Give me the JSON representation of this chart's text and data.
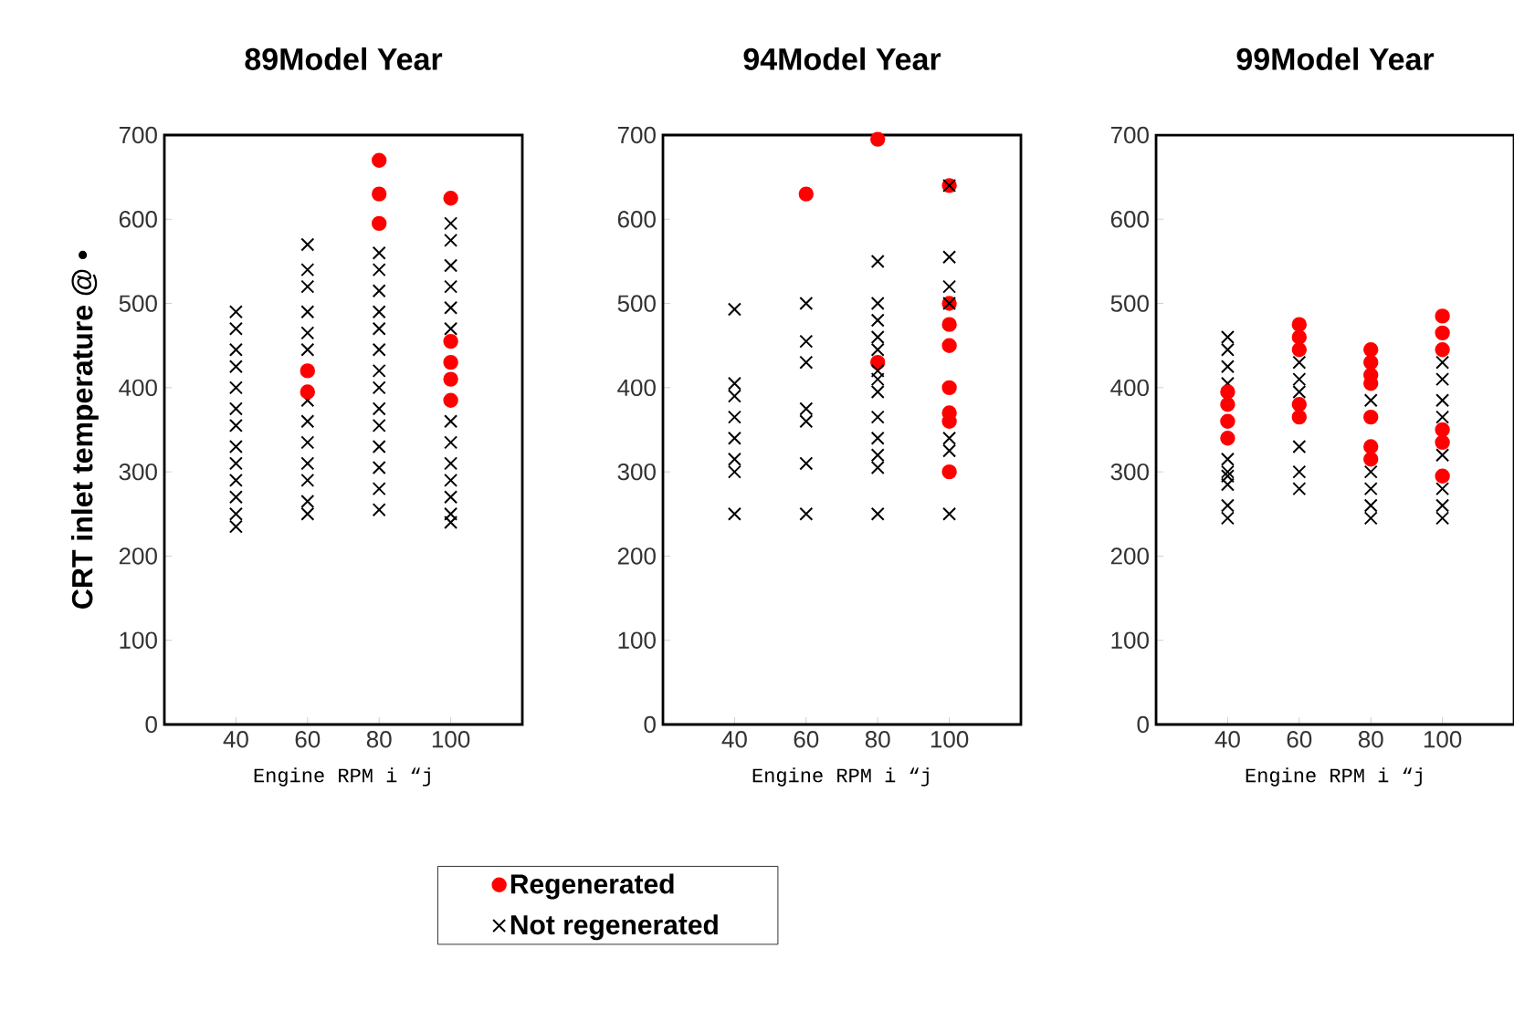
{
  "chart_data": [
    {
      "type": "scatter",
      "title": "89Model Year",
      "xlabel": "Engine RPM i “j",
      "ylabel": "CRT inlet temperature @ •",
      "xlim": [
        20,
        120
      ],
      "xticks": [
        40,
        60,
        80,
        100
      ],
      "ylim": [
        0,
        700
      ],
      "yticks": [
        0,
        100,
        200,
        300,
        400,
        500,
        600,
        700
      ],
      "grid": false,
      "series": [
        {
          "color": "#000000",
          "marker": "cross",
          "x": [
            40,
            40,
            40,
            40,
            40,
            40,
            40,
            40,
            40,
            40,
            40,
            40,
            40,
            60,
            60,
            60,
            60,
            60,
            60,
            60,
            60,
            60,
            60,
            60,
            60,
            60,
            80,
            80,
            80,
            80,
            80,
            80,
            80,
            80,
            80,
            80,
            80,
            80,
            80,
            80,
            100,
            100,
            100,
            100,
            100,
            100,
            100,
            100,
            100,
            100,
            100,
            100,
            100
          ],
          "values": [
            490,
            470,
            445,
            425,
            400,
            375,
            355,
            330,
            310,
            290,
            270,
            250,
            235,
            570,
            540,
            520,
            490,
            465,
            445,
            385,
            360,
            335,
            310,
            290,
            265,
            250,
            560,
            540,
            515,
            490,
            470,
            445,
            420,
            400,
            375,
            355,
            330,
            305,
            280,
            255,
            595,
            575,
            545,
            520,
            495,
            470,
            360,
            335,
            310,
            290,
            270,
            250,
            240
          ]
        },
        {
          "color": "#ff0000",
          "marker": "circle",
          "x": [
            60,
            60,
            80,
            80,
            80,
            100,
            100,
            100,
            100,
            100
          ],
          "values": [
            420,
            395,
            670,
            630,
            595,
            625,
            455,
            430,
            410,
            385
          ]
        }
      ]
    },
    {
      "type": "scatter",
      "title": "94Model Year",
      "xlabel": "Engine RPM i “j",
      "xlim": [
        20,
        120
      ],
      "xticks": [
        40,
        60,
        80,
        100
      ],
      "ylim": [
        0,
        700
      ],
      "yticks": [
        0,
        100,
        200,
        300,
        400,
        500,
        600,
        700
      ],
      "grid": false,
      "legend": "bottom",
      "series": [
        {
          "name": "Regenerated",
          "color": "#ff0000",
          "marker": "circle",
          "x": [
            60,
            80,
            80,
            100,
            100,
            100,
            100,
            100,
            100,
            100,
            100
          ],
          "values": [
            630,
            695,
            430,
            640,
            500,
            475,
            450,
            400,
            370,
            360,
            300
          ]
        },
        {
          "name": "Not regenerated",
          "color": "#000000",
          "marker": "cross",
          "x": [
            40,
            40,
            40,
            40,
            40,
            40,
            40,
            40,
            60,
            60,
            60,
            60,
            60,
            60,
            60,
            80,
            80,
            80,
            80,
            80,
            80,
            80,
            80,
            80,
            80,
            80,
            80,
            80,
            100,
            100,
            100,
            100,
            100,
            100,
            100
          ],
          "values": [
            493,
            405,
            390,
            365,
            340,
            315,
            300,
            250,
            500,
            455,
            430,
            375,
            360,
            310,
            250,
            550,
            500,
            480,
            460,
            445,
            420,
            410,
            395,
            365,
            340,
            320,
            305,
            250,
            640,
            555,
            520,
            500,
            340,
            325,
            250
          ]
        }
      ]
    },
    {
      "type": "scatter",
      "title": "99Model Year",
      "xlabel": "Engine RPM i “j",
      "xlim": [
        20,
        120
      ],
      "xticks": [
        40,
        60,
        80,
        100
      ],
      "ylim": [
        0,
        700
      ],
      "yticks": [
        0,
        100,
        200,
        300,
        400,
        500,
        600,
        700
      ],
      "grid": false,
      "series": [
        {
          "color": "#000000",
          "marker": "cross",
          "x": [
            40,
            40,
            40,
            40,
            40,
            40,
            40,
            40,
            40,
            40,
            60,
            60,
            60,
            60,
            60,
            60,
            80,
            80,
            80,
            80,
            80,
            100,
            100,
            100,
            100,
            100,
            100,
            100,
            100
          ],
          "values": [
            460,
            445,
            425,
            405,
            315,
            300,
            295,
            285,
            260,
            245,
            430,
            410,
            395,
            330,
            300,
            280,
            385,
            300,
            280,
            260,
            245,
            430,
            410,
            385,
            365,
            320,
            280,
            260,
            245
          ]
        },
        {
          "color": "#ff0000",
          "marker": "circle",
          "x": [
            40,
            40,
            40,
            40,
            60,
            60,
            60,
            60,
            60,
            80,
            80,
            80,
            80,
            80,
            80,
            80,
            100,
            100,
            100,
            100,
            100,
            100
          ],
          "values": [
            395,
            380,
            360,
            340,
            475,
            460,
            445,
            380,
            365,
            445,
            430,
            415,
            405,
            365,
            330,
            315,
            485,
            465,
            445,
            350,
            335,
            295
          ]
        }
      ]
    }
  ]
}
